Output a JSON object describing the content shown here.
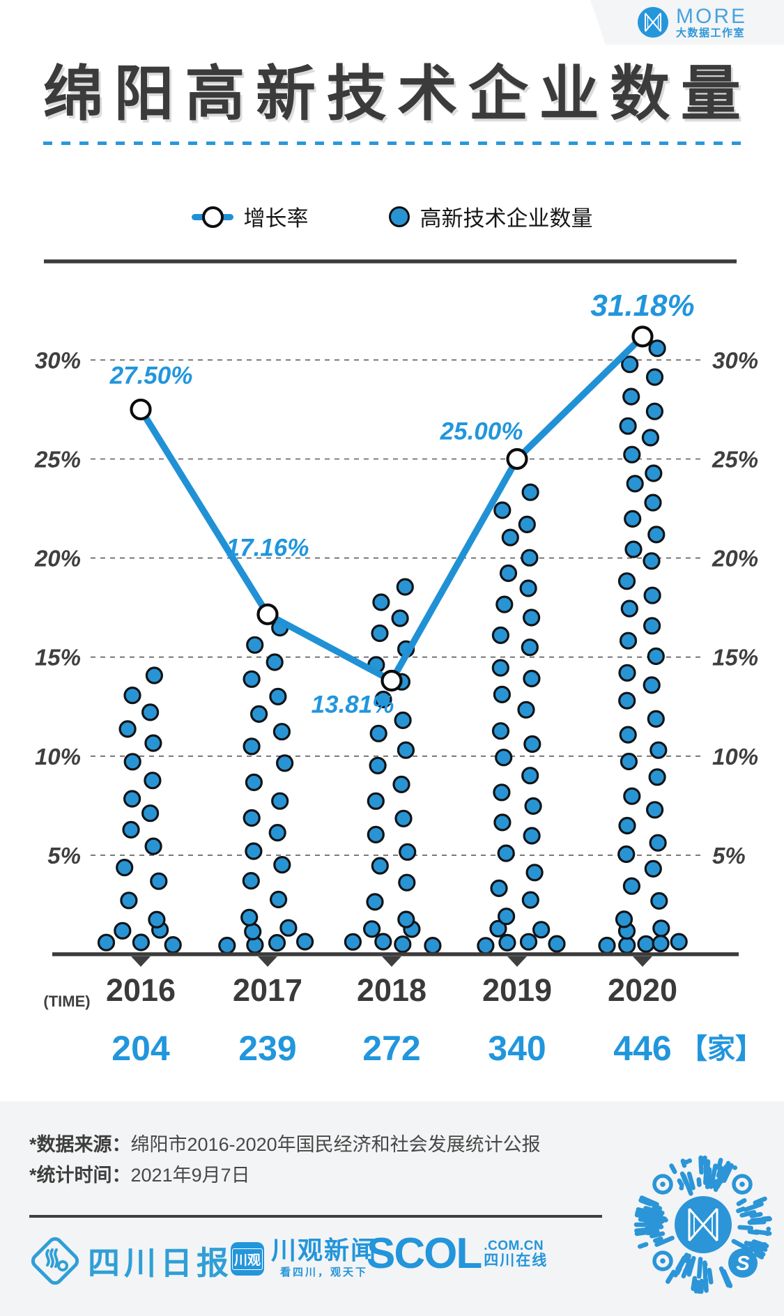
{
  "colors": {
    "accent": "#2196dc",
    "line": "#2191d6",
    "dot_fill": "#2994d4",
    "dot_stroke": "#101417",
    "marker_stroke": "#0c0c0c",
    "dark": "#3b3b3b",
    "grid": "#5a5a5a",
    "footer_bg": "#f3f4f5",
    "logo_blue": "#2b95d8"
  },
  "header_badge": {
    "brand": "MORE",
    "sub": "大数据工作室",
    "logo_icon": "bowtie-m-icon"
  },
  "title": "绵阳高新技术企业数量",
  "legend": [
    {
      "label": "增长率",
      "marker": "line-circle"
    },
    {
      "label": "高新技术企业数量",
      "marker": "dot"
    }
  ],
  "chart_data": {
    "type": "line",
    "categories": [
      "2016",
      "2017",
      "2018",
      "2019",
      "2020"
    ],
    "series": [
      {
        "name": "增长率",
        "type": "line",
        "unit": "%",
        "values": [
          27.5,
          17.16,
          13.81,
          25.0,
          31.18
        ],
        "point_labels": [
          "27.50%",
          "17.16%",
          "13.81%",
          "25.00%",
          "31.18%"
        ]
      },
      {
        "name": "高新技术企业数量",
        "type": "dot-column",
        "unit": "家",
        "values": [
          204,
          239,
          272,
          340,
          446
        ],
        "dot_counts": [
          20,
          24,
          27,
          34,
          45
        ],
        "percent_scale": 14.57
      }
    ],
    "y_ticks": [
      "5%",
      "10%",
      "15%",
      "20%",
      "25%",
      "30%"
    ],
    "y_tick_values": [
      5,
      10,
      15,
      20,
      25,
      30
    ],
    "ylim": [
      0,
      32.6
    ],
    "y_labels_sides": "both",
    "grid": "dashed-horizontal",
    "x_axis_label": "(TIME)",
    "counts_row": [
      "204",
      "239",
      "272",
      "340",
      "446"
    ],
    "counts_unit": "【家】"
  },
  "footer": {
    "source_label": "*数据来源：",
    "source_text": "绵阳市2016-2020年国民经济和社会发展统计公报",
    "time_label": "*统计时间：",
    "time_text": "2021年9月7日",
    "logos": {
      "paper": "四川日报",
      "app_icon_text": "川观",
      "app_name": "川观新闻",
      "app_tagline": "看四川，观天下",
      "scol": "SCOL",
      "scol_com": ".COM.CN",
      "scol_cn": "四川在线"
    },
    "qr": "wechat-mini-program-code"
  }
}
